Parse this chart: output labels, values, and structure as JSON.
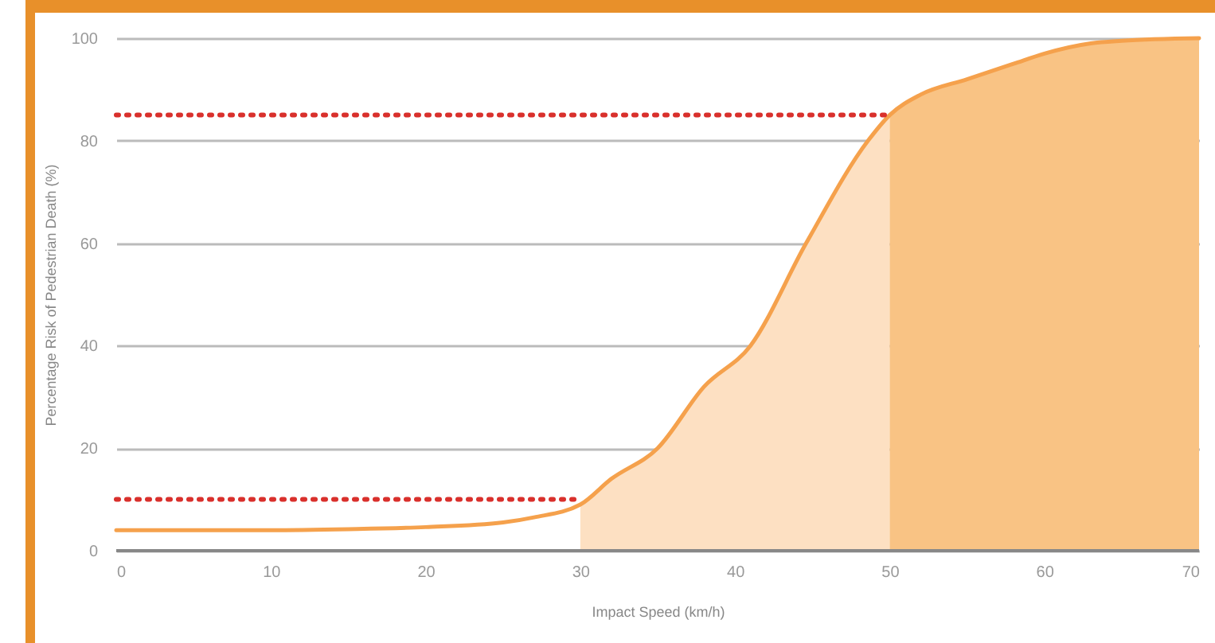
{
  "chart_data": {
    "type": "line",
    "xlabel": "Impact Speed (km/h)",
    "ylabel": "Percentage Risk of Pedestrian Death (%)",
    "series": [
      {
        "type": "area",
        "color": "#fde0c2",
        "x": [
          30,
          32,
          35,
          38,
          41,
          44.6,
          48.6,
          50
        ],
        "values": [
          9,
          14,
          20,
          32,
          40,
          60,
          80,
          85
        ]
      },
      {
        "type": "area",
        "color": "#f9c384",
        "x": [
          50,
          52,
          55,
          58,
          60,
          63,
          65,
          70
        ],
        "values": [
          85,
          89,
          92,
          95,
          97,
          99,
          99.5,
          100
        ]
      },
      {
        "type": "line",
        "color": "#f5a14c",
        "x": [
          0,
          5,
          10,
          15,
          20,
          25,
          27,
          30,
          32,
          35,
          38,
          41,
          44.6,
          48.6,
          50,
          52,
          55,
          58,
          60,
          63,
          65,
          70
        ],
        "values": [
          4,
          4,
          4,
          4.2,
          4.6,
          5.5,
          6.5,
          9,
          14,
          20,
          32,
          40,
          60,
          80,
          85,
          89,
          92,
          95,
          97,
          99,
          99.5,
          100
        ]
      },
      {
        "type": "line",
        "color": "#d9302c",
        "line_style": "dotted",
        "x": [
          0,
          30
        ],
        "values": [
          10,
          10
        ]
      },
      {
        "type": "line",
        "color": "#d9302c",
        "line_style": "dotted",
        "x": [
          0,
          50
        ],
        "values": [
          85,
          85
        ]
      }
    ],
    "xlim": [
      0,
      70
    ],
    "xticks": [
      0,
      10,
      20,
      30,
      40,
      50,
      60,
      70
    ],
    "ylim": [
      0,
      100
    ],
    "yticks": [
      0,
      20,
      40,
      60,
      80,
      100
    ],
    "grid": "y"
  }
}
